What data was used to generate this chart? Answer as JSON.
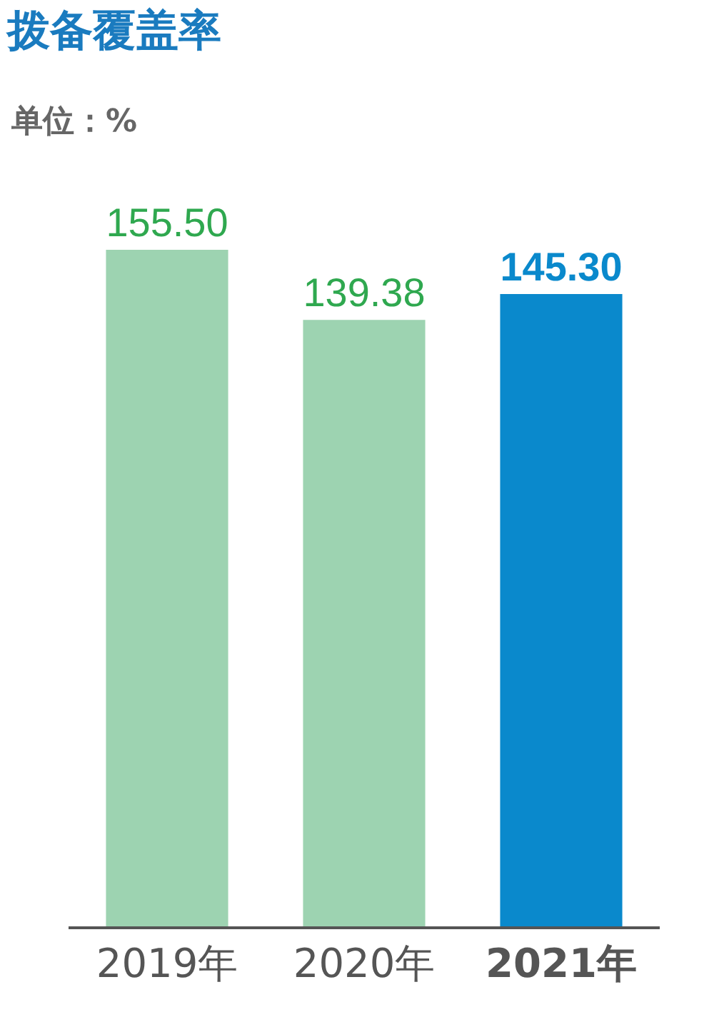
{
  "chart_data": {
    "type": "bar",
    "title": "拨备覆盖率",
    "subtitle": "单位：%",
    "categories": [
      "2019年",
      "2020年",
      "2021年"
    ],
    "values": [
      155.5,
      139.38,
      145.3
    ],
    "colors": [
      "#9dd3b1",
      "#9dd3b1",
      "#0a89cc"
    ],
    "value_labels": [
      "155.50",
      "139.38",
      "145.30"
    ]
  }
}
